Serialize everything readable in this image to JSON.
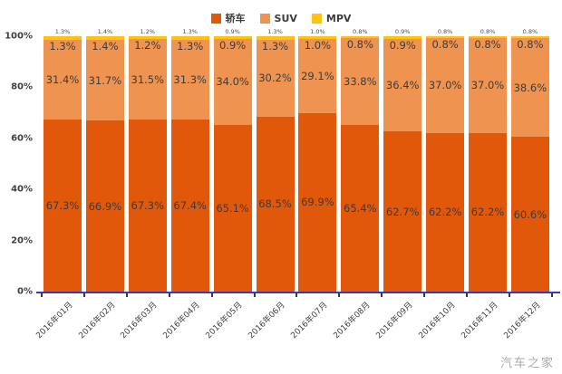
{
  "legend": {
    "items": [
      {
        "label": "轿车",
        "color": "#e2580a"
      },
      {
        "label": "SUV",
        "color": "#ef9450"
      },
      {
        "label": "MPV",
        "color": "#ffc20e"
      }
    ]
  },
  "y_axis": {
    "tick_labels": [
      "100%",
      "80%",
      "60%",
      "40%",
      "20%",
      "0%"
    ]
  },
  "watermark": "汽车之家",
  "chart_data": {
    "type": "bar",
    "stacked": true,
    "grid": false,
    "legend_position": "top-center",
    "ylim": [
      0,
      100
    ],
    "ylabel": "",
    "xlabel": "",
    "axis_color": "#3939c0",
    "label_color": "#3c3c3c",
    "categories": [
      "2016年01月",
      "2016年02月",
      "2016年03月",
      "2016年04月",
      "2016年05月",
      "2016年06月",
      "2016年07月",
      "2016年08月",
      "2016年09月",
      "2016年10月",
      "2016年11月",
      "2016年12月"
    ],
    "series": [
      {
        "name": "轿车",
        "color": "#e2580a",
        "values": [
          67.3,
          66.9,
          67.3,
          67.4,
          65.1,
          68.5,
          69.9,
          65.4,
          62.7,
          62.2,
          62.2,
          60.6
        ]
      },
      {
        "name": "SUV",
        "color": "#ef9450",
        "values": [
          31.4,
          31.7,
          31.5,
          31.3,
          34.0,
          30.2,
          29.1,
          33.8,
          36.4,
          37.0,
          37.0,
          38.6
        ]
      },
      {
        "name": "MPV",
        "color": "#ffc20e",
        "values": [
          1.3,
          1.4,
          1.2,
          1.3,
          0.9,
          1.3,
          1.0,
          0.8,
          0.9,
          0.8,
          0.8,
          0.8
        ]
      }
    ]
  }
}
